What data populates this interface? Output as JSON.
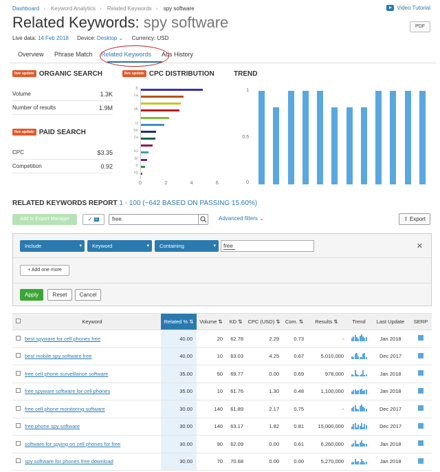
{
  "breadcrumbs": [
    "Dashboard",
    "Keyword Analytics",
    "Related Keywords",
    "spy software"
  ],
  "video_tutorial": "Video Tutorial",
  "page_title": "Related Keywords:",
  "query": "spy software",
  "pdf_button": "PDF",
  "meta": {
    "live_data_label": "Live data:",
    "live_data_value": "14 Feb 2018",
    "device_label": "Device:",
    "device_value": "Desktop",
    "currency": "Currency: USD"
  },
  "tabs": [
    "Overview",
    "Phrase Match",
    "Related Keywords",
    "Ads History"
  ],
  "live_badge": "live update",
  "organic": {
    "title": "ORGANIC SEARCH",
    "rows": [
      {
        "label": "Volume",
        "value": "1.3K"
      },
      {
        "label": "Number of results",
        "value": "1.9M"
      }
    ]
  },
  "paid": {
    "title": "PAID SEARCH",
    "rows": [
      {
        "label": "CPC",
        "value": "$3.35"
      },
      {
        "label": "Competition",
        "value": "0.92"
      }
    ]
  },
  "chart_data": [
    {
      "type": "bar",
      "title": "CPC DISTRIBUTION",
      "orientation": "horizontal",
      "categories": [
        "fr",
        "ca",
        "",
        "uk",
        "",
        "nl",
        "be",
        "za",
        "",
        "es",
        "br",
        "tr",
        "sg"
      ],
      "values": [
        4.8,
        3.3,
        3.1,
        3.0,
        2.2,
        1.8,
        1.2,
        1.1,
        0.9,
        0.6,
        0.5,
        0.3,
        0.1
      ],
      "colors": [
        "#3b2ea8",
        "#b8521c",
        "#c9c627",
        "#b91c25",
        "#7fbd3a",
        "#3b8fc6",
        "#1f2c7a",
        "#17614e",
        "#8d1a4d",
        "#40a0a8",
        "#6b2a7a",
        "#2d8f4d",
        "#555555"
      ],
      "xticks": [
        "0",
        "2",
        "4",
        "6"
      ],
      "xlim": [
        0,
        6
      ]
    },
    {
      "type": "bar",
      "title": "TREND",
      "values": [
        1,
        0.82,
        1,
        1,
        1,
        0.82,
        0.82,
        0.82,
        1,
        1,
        1,
        1
      ],
      "yticks": [
        "1",
        "0.5",
        "0"
      ],
      "ylim": [
        0,
        1
      ]
    }
  ],
  "report": {
    "title": "RELATED KEYWORDS REPORT",
    "range": "1 - 100 (~642 BASED ON PASSING 15.60%)",
    "export_manager": "Add to Export Manager",
    "selected_count": "0",
    "search_value": "free",
    "advanced_filters": "Advanced filters",
    "export": "Export"
  },
  "filter": {
    "include": "Include",
    "field": "Keyword",
    "op": "Containing",
    "value": "free",
    "add_more": "+ Add one more",
    "apply": "Apply",
    "reset": "Reset",
    "cancel": "Cancel"
  },
  "table": {
    "headers": [
      "Keyword",
      "Related %",
      "Volume",
      "KD",
      "CPC (USD)",
      "Com.",
      "Results",
      "Trend",
      "Last Update",
      "SERP"
    ],
    "rows": [
      {
        "kw": "best spyware for cell phones free",
        "rel": "40.00",
        "vol": "20",
        "kd": "62.78",
        "cpc": "2.29",
        "com": "0.73",
        "res": "-",
        "upd": "Jan 2018"
      },
      {
        "kw": "best mobile spy software free",
        "rel": "40.00",
        "vol": "10",
        "kd": "63.03",
        "cpc": "4.25",
        "com": "0.67",
        "res": "5,010,000",
        "upd": "Dec 2017"
      },
      {
        "kw": "free cell phone surveillance software",
        "rel": "35.00",
        "vol": "50",
        "kd": "69.77",
        "cpc": "0.00",
        "com": "0.69",
        "res": "978,000",
        "upd": "Jan 2018"
      },
      {
        "kw": "free spyware software for cell phones",
        "rel": "35.00",
        "vol": "10",
        "kd": "61.76",
        "cpc": "1.30",
        "com": "0.48",
        "res": "1,100,000",
        "upd": "Jan 2018"
      },
      {
        "kw": "free cell phone monitoring software",
        "rel": "30.00",
        "vol": "140",
        "kd": "61.89",
        "cpc": "2.17",
        "com": "0.75",
        "res": "-",
        "upd": "Dec 2017"
      },
      {
        "kw": "free phone spy software",
        "rel": "30.00",
        "vol": "140",
        "kd": "63.17",
        "cpc": "1.82",
        "com": "0.81",
        "res": "15,000,000",
        "upd": "Dec 2017"
      },
      {
        "kw": "software for spying on cell phones for free",
        "rel": "30.00",
        "vol": "90",
        "kd": "62.09",
        "cpc": "0.00",
        "com": "0.61",
        "res": "6,260,000",
        "upd": "Jan 2018"
      },
      {
        "kw": "spy software for phones free download",
        "rel": "30.00",
        "vol": "70",
        "kd": "70.68",
        "cpc": "0.00",
        "com": "0.00",
        "res": "5,270,000",
        "upd": "Jan 2018"
      }
    ]
  }
}
